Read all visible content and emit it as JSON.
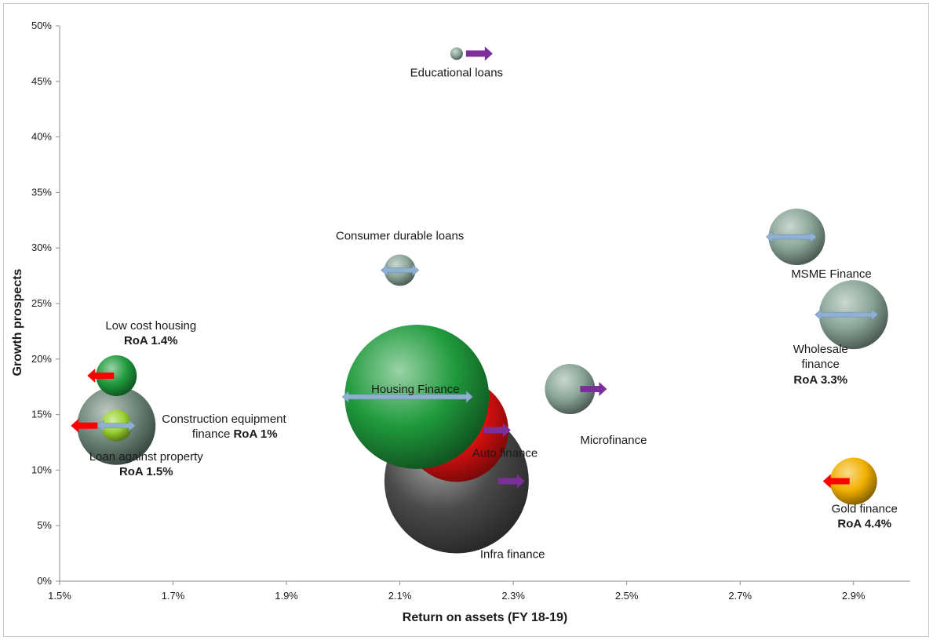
{
  "chart_data": {
    "type": "bubble",
    "xlabel": "Return on assets (FY 18-19)",
    "ylabel": "Growth prospects",
    "xlim": [
      1.5,
      3.0
    ],
    "ylim": [
      0,
      50
    ],
    "x_ticks": [
      "1.5%",
      "1.7%",
      "1.9%",
      "2.1%",
      "2.3%",
      "2.5%",
      "2.7%",
      "2.9%"
    ],
    "y_ticks": [
      "0%",
      "5%",
      "10%",
      "15%",
      "20%",
      "25%",
      "30%",
      "35%",
      "40%",
      "45%",
      "50%"
    ],
    "grid": false,
    "legend": "none",
    "series": [
      {
        "label": "Educational loans",
        "roa_note": "",
        "x": 2.2,
        "y": 47.5,
        "size": 8,
        "color": "#8aa598",
        "trend": "right",
        "arrow_color": "#7a2f99"
      },
      {
        "label": "Consumer durable loans",
        "roa_note": "",
        "x": 2.1,
        "y": 28,
        "size": 20,
        "color": "#8aa598",
        "trend": "flat",
        "arrow_color": "#8fb0d0"
      },
      {
        "label": "MSME Finance",
        "roa_note": "",
        "x": 2.8,
        "y": 31,
        "size": 36,
        "color": "#8aa598",
        "trend": "flat",
        "arrow_color": "#8fb0d0"
      },
      {
        "label": "Wholesale finance",
        "roa_note": "RoA 3.3%",
        "x": 2.9,
        "y": 24,
        "size": 44,
        "color": "#8aa598",
        "trend": "flat",
        "arrow_color": "#8fb0d0"
      },
      {
        "label": "Low cost housing",
        "roa_note": "RoA 1.4%",
        "x": 1.6,
        "y": 18.5,
        "size": 26,
        "color": "#1f9a3c",
        "trend": "left",
        "arrow_color": "#ff0000"
      },
      {
        "label": "Loan against property",
        "roa_note": "RoA 1.5%",
        "x": 1.6,
        "y": 14,
        "size": 50,
        "color": "#6c8578",
        "trend": "left",
        "arrow_color": "#ff0000"
      },
      {
        "label": "Construction equipment finance",
        "roa_note": "RoA 1%",
        "x": 1.6,
        "y": 14,
        "size": 20,
        "color": "#9ad22e",
        "trend": "flat",
        "arrow_color": "#8fb0d0"
      },
      {
        "label": "Microfinance",
        "roa_note": "",
        "x": 2.4,
        "y": 17.3,
        "size": 32,
        "color": "#8aa598",
        "trend": "right",
        "arrow_color": "#7a2f99"
      },
      {
        "label": "Auto finance",
        "roa_note": "",
        "x": 2.2,
        "y": 13.6,
        "size": 66,
        "color": "#e01010",
        "trend": "right",
        "arrow_color": "#7a2f99"
      },
      {
        "label": "Infra finance",
        "roa_note": "",
        "x": 2.2,
        "y": 9,
        "size": 92,
        "color": "#4a4a4a",
        "trend": "right",
        "arrow_color": "#7a2f99"
      },
      {
        "label": "Housing Finance",
        "roa_note": "",
        "x": 2.13,
        "y": 16.6,
        "size": 92,
        "color": "#1f9a3c",
        "trend": "flat",
        "arrow_color": "#8fb0d0"
      },
      {
        "label": "Gold finance",
        "roa_note": "RoA 4.4%",
        "x": 2.9,
        "y": 9,
        "size": 30,
        "color": "#f2b000",
        "trend": "left",
        "arrow_color": "#ff0000"
      }
    ]
  }
}
